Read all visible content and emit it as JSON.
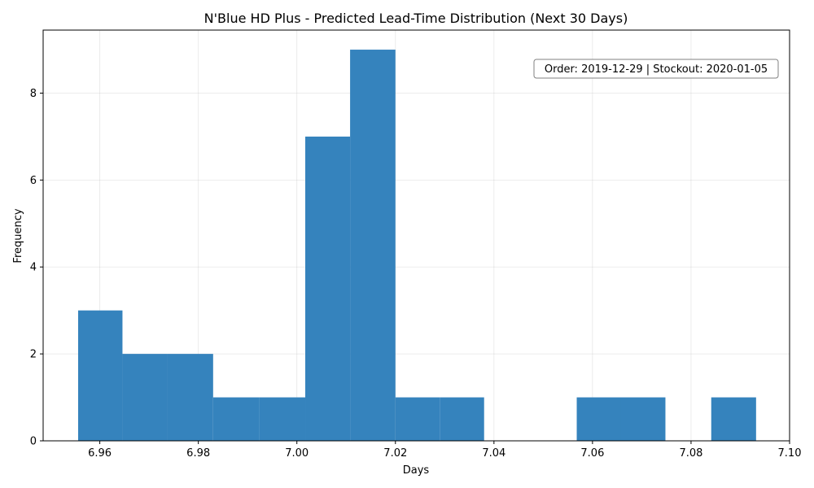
{
  "chart_data": {
    "type": "bar",
    "title": "N'Blue HD Plus - Predicted Lead-Time Distribution (Next 30 Days)",
    "xlabel": "Days",
    "ylabel": "Frequency",
    "xlim": [
      6.9485,
      7.1
    ],
    "ylim": [
      0,
      9.45
    ],
    "x_ticks": [
      "6.96",
      "6.98",
      "7.00",
      "7.02",
      "7.04",
      "7.06",
      "7.08",
      "7.10"
    ],
    "y_ticks": [
      "0",
      "2",
      "4",
      "6",
      "8"
    ],
    "grid": true,
    "bar_color": "#3583bd",
    "bins": [
      {
        "x0": 6.9556,
        "x1": 6.9646,
        "count": 3
      },
      {
        "x0": 6.9646,
        "x1": 6.9737,
        "count": 2
      },
      {
        "x0": 6.9737,
        "x1": 6.983,
        "count": 2
      },
      {
        "x0": 6.983,
        "x1": 6.9923,
        "count": 1
      },
      {
        "x0": 6.9923,
        "x1": 7.0017,
        "count": 1
      },
      {
        "x0": 7.0017,
        "x1": 7.0108,
        "count": 7
      },
      {
        "x0": 7.0108,
        "x1": 7.02,
        "count": 9
      },
      {
        "x0": 7.02,
        "x1": 7.029,
        "count": 1
      },
      {
        "x0": 7.029,
        "x1": 7.038,
        "count": 1
      },
      {
        "x0": 7.038,
        "x1": 7.047,
        "count": 0
      },
      {
        "x0": 7.047,
        "x1": 7.0568,
        "count": 0
      },
      {
        "x0": 7.0568,
        "x1": 7.0658,
        "count": 1
      },
      {
        "x0": 7.0658,
        "x1": 7.0748,
        "count": 1
      },
      {
        "x0": 7.0748,
        "x1": 7.0841,
        "count": 0
      },
      {
        "x0": 7.0841,
        "x1": 7.0932,
        "count": 1
      }
    ],
    "annotation": "Order: 2019-12-29 | Stockout: 2020-01-05"
  }
}
